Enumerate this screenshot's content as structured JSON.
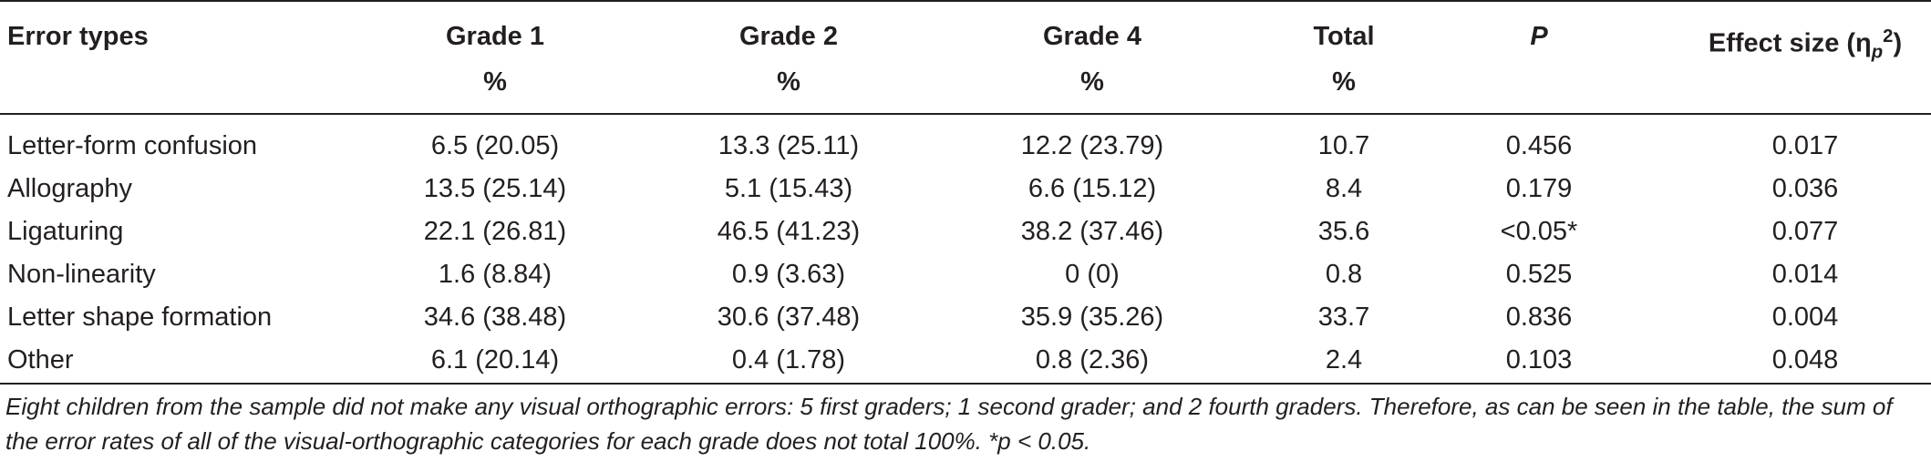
{
  "table": {
    "headers": {
      "col0": "Error types",
      "col1": "Grade 1",
      "col2": "Grade 2",
      "col3": "Grade 4",
      "col4": "Total",
      "col5": "P",
      "col6_prefix": "Effect size (η",
      "col6_sub": "p",
      "col6_sup": "2",
      "col6_suffix": ")"
    },
    "subheaders": {
      "col1": "%",
      "col2": "%",
      "col3": "%",
      "col4": "%"
    },
    "rows": [
      {
        "type": "Letter-form confusion",
        "g1": "6.5 (20.05)",
        "g2": "13.3 (25.11)",
        "g4": "12.2 (23.79)",
        "total": "10.7",
        "p": "0.456",
        "effect": "0.017"
      },
      {
        "type": "Allography",
        "g1": "13.5 (25.14)",
        "g2": "5.1 (15.43)",
        "g4": "6.6 (15.12)",
        "total": "8.4",
        "p": "0.179",
        "effect": "0.036"
      },
      {
        "type": "Ligaturing",
        "g1": "22.1 (26.81)",
        "g2": "46.5 (41.23)",
        "g4": "38.2 (37.46)",
        "total": "35.6",
        "p": "<0.05*",
        "effect": "0.077"
      },
      {
        "type": "Non-linearity",
        "g1": "1.6 (8.84)",
        "g2": "0.9 (3.63)",
        "g4": "0 (0)",
        "total": "0.8",
        "p": "0.525",
        "effect": "0.014"
      },
      {
        "type": "Letter shape formation",
        "g1": "34.6 (38.48)",
        "g2": "30.6 (37.48)",
        "g4": "35.9 (35.26)",
        "total": "33.7",
        "p": "0.836",
        "effect": "0.004"
      },
      {
        "type": "Other",
        "g1": "6.1 (20.14)",
        "g2": "0.4 (1.78)",
        "g4": "0.8 (2.36)",
        "total": "2.4",
        "p": "0.103",
        "effect": "0.048"
      }
    ],
    "footnote": "Eight children from the sample did not make any visual orthographic errors: 5 first graders; 1 second grader; and 2 fourth graders. Therefore, as can be seen in the table, the sum of the error rates of all of the visual-orthographic categories for each grade does not total 100%. *p < 0.05."
  }
}
